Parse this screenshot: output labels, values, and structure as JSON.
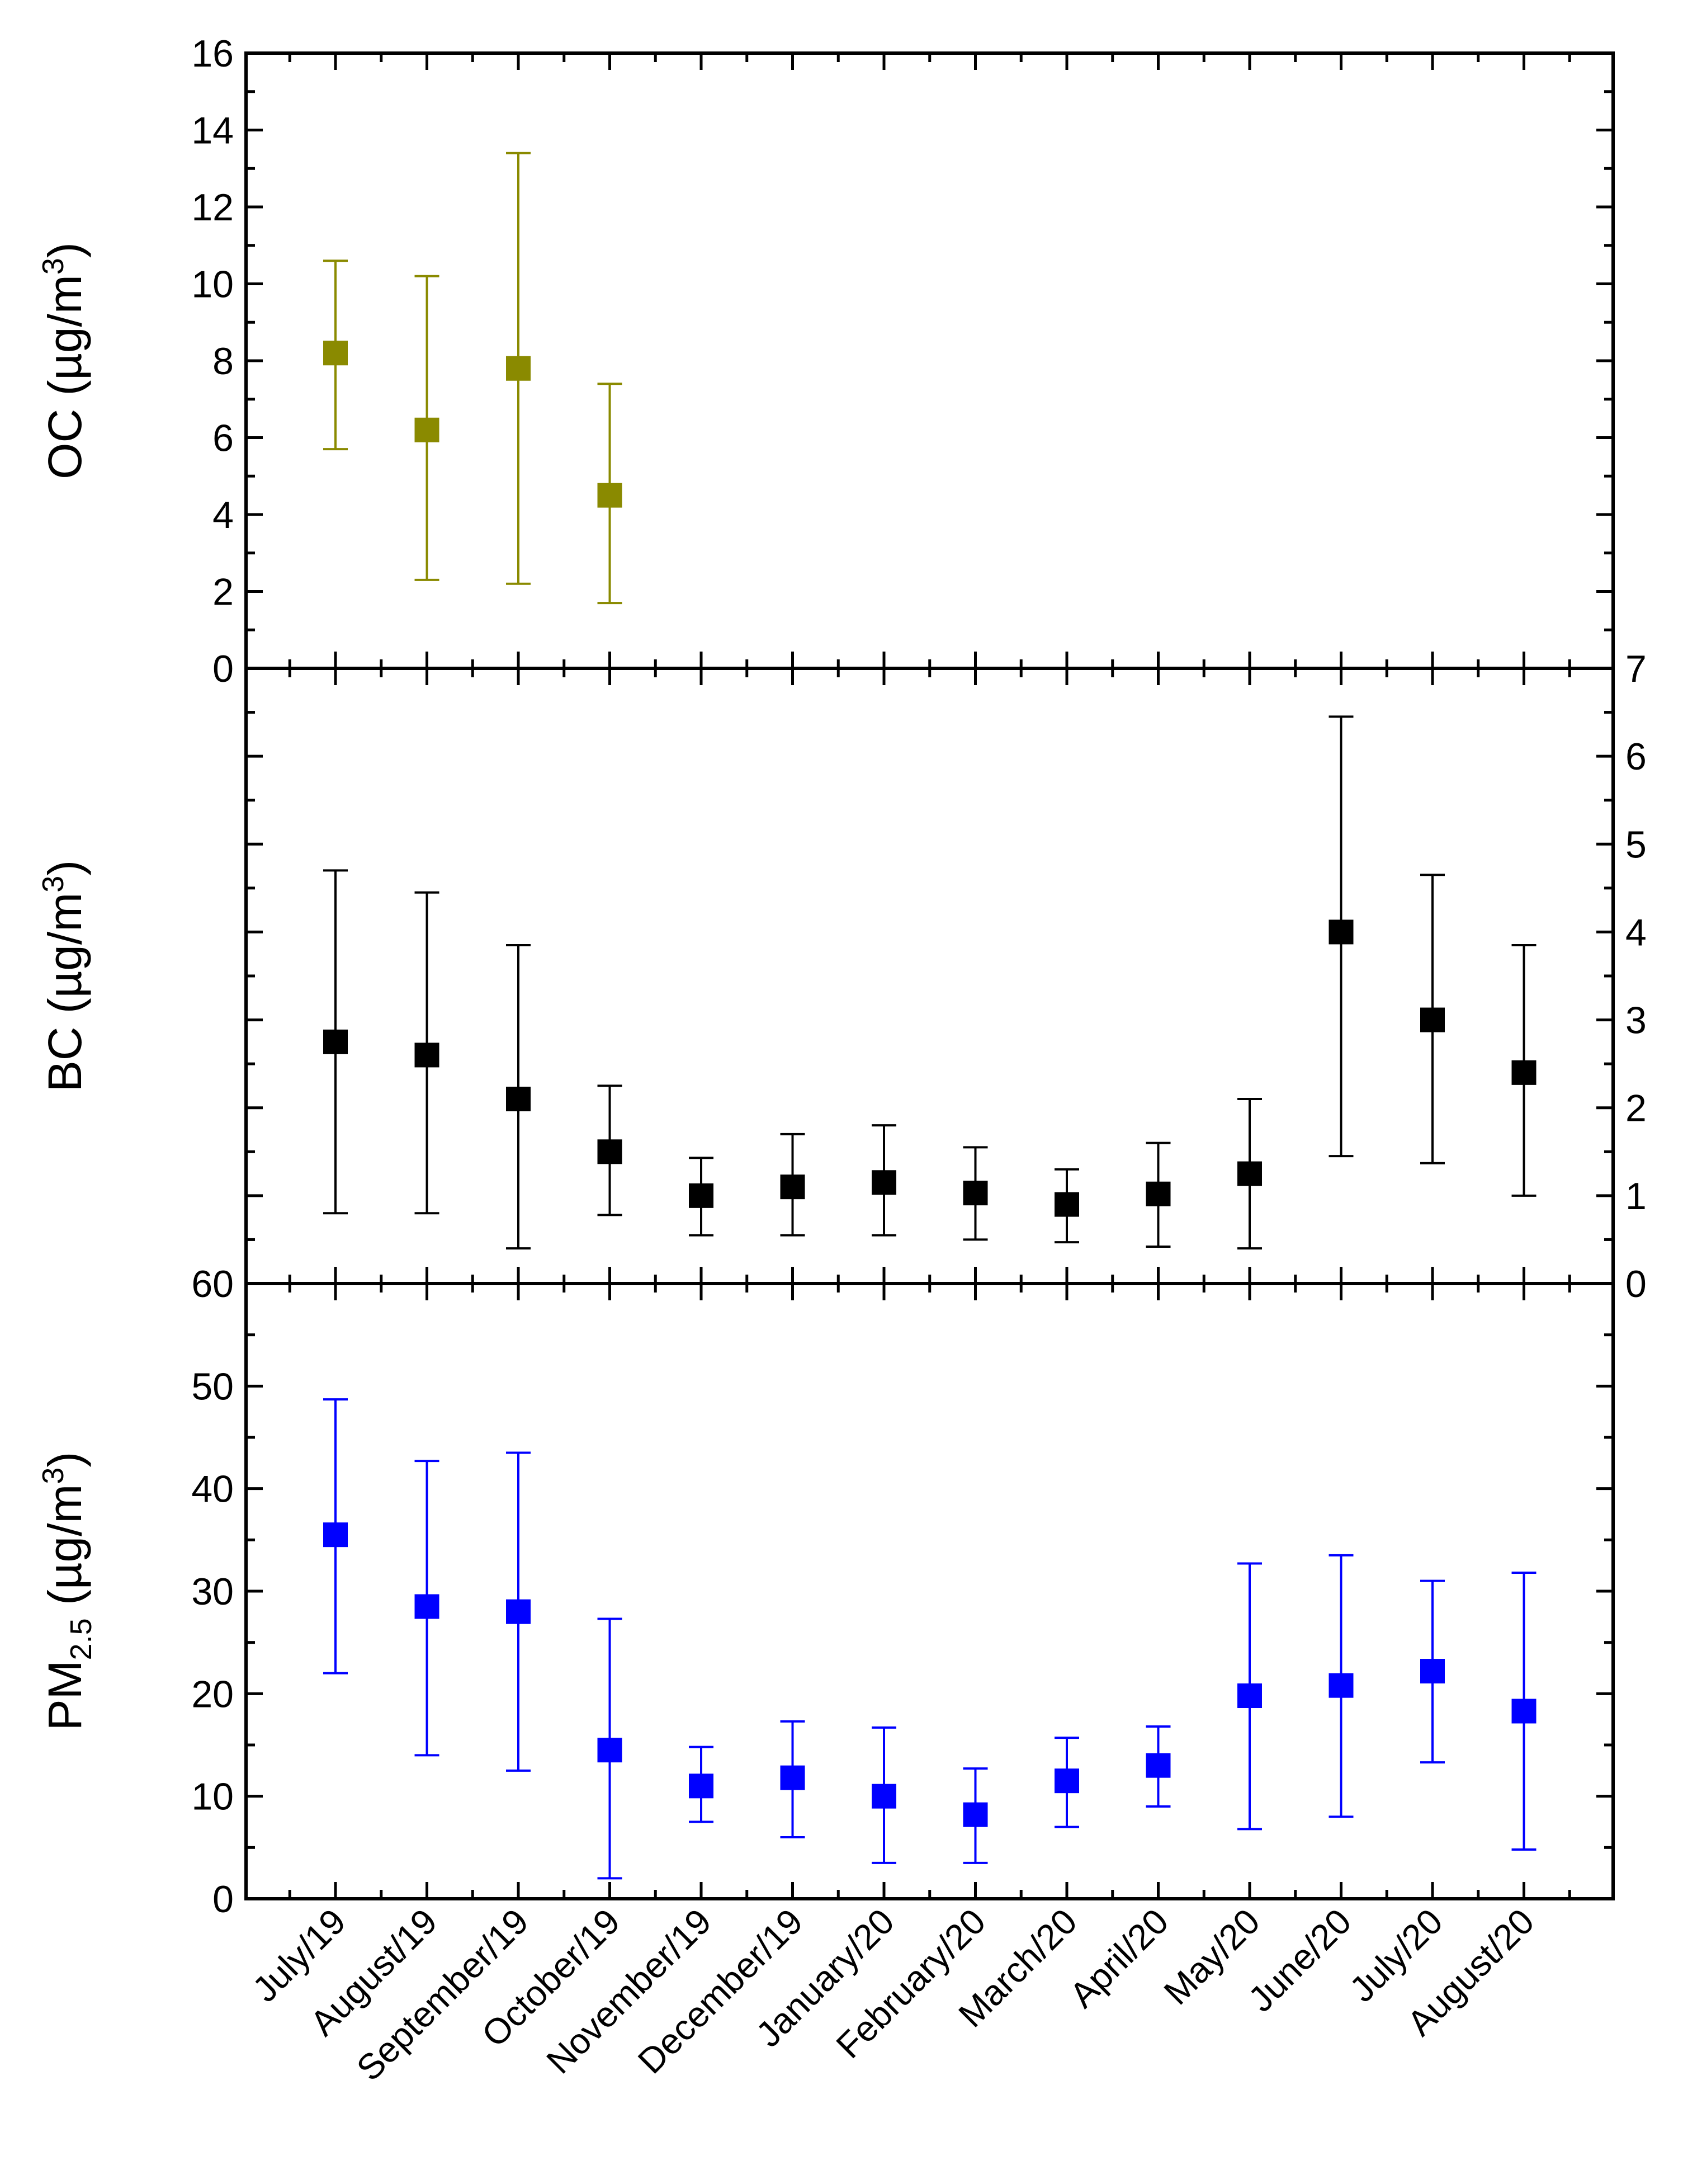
{
  "chart_data": {
    "type": "scatter",
    "categories": [
      "July/19",
      "August/19",
      "September/19",
      "October/19",
      "November/19",
      "December/19",
      "January/20",
      "February/20",
      "March/20",
      "April/20",
      "May/20",
      "June/20",
      "July/20",
      "August/20"
    ],
    "panels": [
      {
        "id": "oc",
        "ylabel_main": "OC (µg/m",
        "ylabel_sup": "3",
        "ylabel_end": ")",
        "ylim": [
          0,
          16
        ],
        "yticks": [
          0,
          2,
          4,
          6,
          8,
          10,
          12,
          14,
          16
        ],
        "ytick_labels": [
          "0",
          "2",
          "4",
          "6",
          "8",
          "10",
          "12",
          "14",
          "16"
        ],
        "color": "#8a8a00",
        "series": [
          {
            "values": [
              8.2,
              6.2,
              7.8,
              4.5,
              null,
              null,
              null,
              null,
              null,
              null,
              null,
              null,
              null,
              null
            ],
            "err_low": [
              5.7,
              2.3,
              2.2,
              1.7,
              null,
              null,
              null,
              null,
              null,
              null,
              null,
              null,
              null,
              null
            ],
            "err_high": [
              10.6,
              10.2,
              13.4,
              7.4,
              null,
              null,
              null,
              null,
              null,
              null,
              null,
              null,
              null,
              null
            ]
          }
        ]
      },
      {
        "id": "bc",
        "ylabel_main": "BC (µg/m",
        "ylabel_sup": "3",
        "ylabel_end": ")",
        "ylim": [
          0,
          7
        ],
        "yticks": [
          0,
          1,
          2,
          3,
          4,
          5,
          6,
          7
        ],
        "ytick_labels": [
          "0",
          "1",
          "2",
          "3",
          "4",
          "5",
          "6",
          "7"
        ],
        "color": "#000000",
        "series": [
          {
            "values": [
              2.75,
              2.6,
              2.1,
              1.5,
              1.0,
              1.1,
              1.15,
              1.03,
              0.9,
              1.02,
              1.25,
              4.0,
              3.0,
              2.4
            ],
            "err_low": [
              0.8,
              0.8,
              0.4,
              0.78,
              0.55,
              0.55,
              0.55,
              0.5,
              0.47,
              0.42,
              0.4,
              1.45,
              1.37,
              1.0
            ],
            "err_high": [
              4.7,
              4.45,
              3.85,
              2.25,
              1.43,
              1.7,
              1.8,
              1.55,
              1.3,
              1.6,
              2.1,
              6.45,
              4.65,
              3.85
            ]
          }
        ]
      },
      {
        "id": "pm25",
        "ylabel_main": "PM",
        "ylabel_sub": "2.5",
        "ylabel_end": " (µg/m",
        "ylabel_sup": "3",
        "ylabel_end2": ")",
        "ylim": [
          0,
          60
        ],
        "yticks": [
          0,
          10,
          20,
          30,
          40,
          50,
          60
        ],
        "ytick_labels": [
          "0",
          "10",
          "20",
          "30",
          "40",
          "50",
          "60"
        ],
        "color": "#0000ff",
        "series": [
          {
            "values": [
              35.5,
              28.5,
              28.0,
              14.5,
              11.0,
              11.8,
              10.0,
              8.2,
              11.5,
              13.0,
              19.8,
              20.8,
              22.2,
              18.3
            ],
            "err_low": [
              22.0,
              14.0,
              12.5,
              2.0,
              7.5,
              6.0,
              3.5,
              3.5,
              7.0,
              9.0,
              6.8,
              8.0,
              13.3,
              4.8
            ],
            "err_high": [
              48.7,
              42.7,
              43.5,
              27.3,
              14.8,
              17.3,
              16.7,
              12.7,
              15.7,
              16.8,
              32.7,
              33.5,
              31.0,
              31.8
            ]
          }
        ]
      }
    ]
  }
}
